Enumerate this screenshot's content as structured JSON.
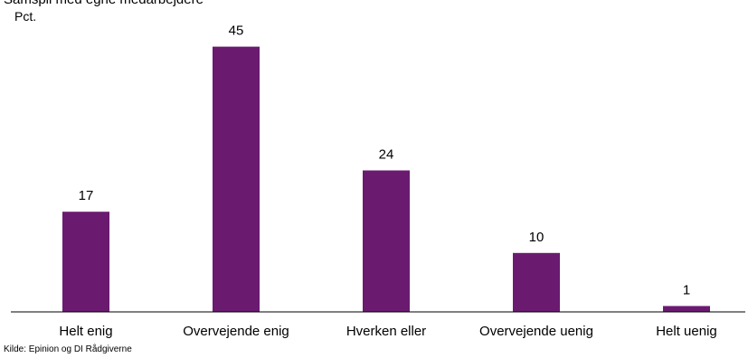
{
  "chart_data": {
    "type": "bar",
    "title": "Samspil med egne medarbejdere",
    "ylabel": "Pct.",
    "xlabel": "",
    "categories": [
      "Helt enig",
      "Overvejende enig",
      "Hverken eller",
      "Overvejende uenig",
      "Helt uenig"
    ],
    "values": [
      17,
      45,
      24,
      10,
      1
    ],
    "data_labels": [
      "17",
      "45",
      "24",
      "10",
      "1"
    ],
    "ylim": [
      0,
      50
    ],
    "grid": false,
    "legend": "none",
    "bar_color": "#6a1b70",
    "source": "Kilde: Epinion og DI Rådgiverne"
  }
}
